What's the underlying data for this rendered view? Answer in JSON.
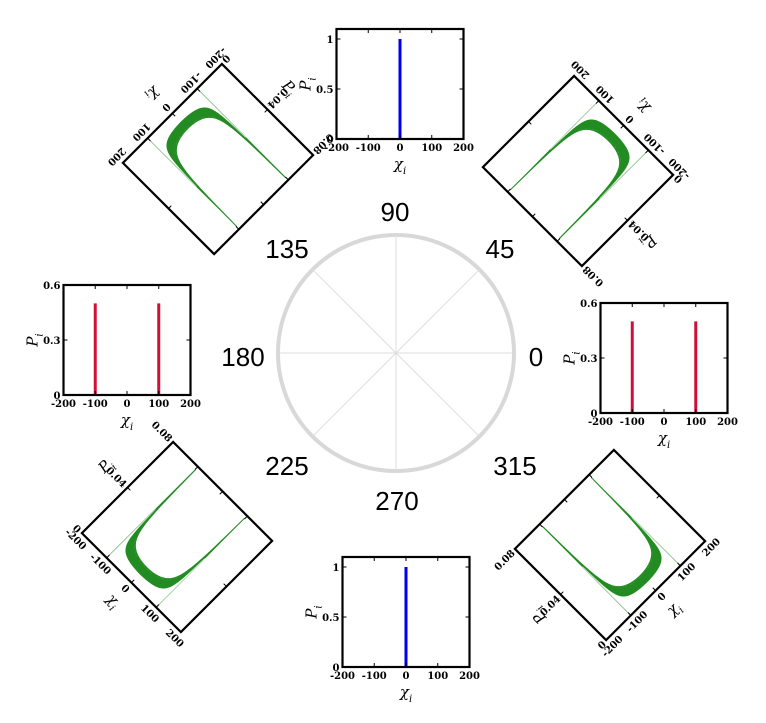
{
  "angle_labels": {
    "a0": "0",
    "a45": "45",
    "a90": "90",
    "a135": "135",
    "a180": "180",
    "a225": "225",
    "a270": "270",
    "a315": "315"
  },
  "colors": {
    "circle": "#d8d8d8",
    "frame": "#000000",
    "series_blue": "#0000ee",
    "series_red": "#d0103a",
    "series_green": "#228b22"
  },
  "chart_data": [
    {
      "id": "p0",
      "type": "bar",
      "angle": 0,
      "xlabel": "χ_i",
      "ylabel": "P_i",
      "xlim": [
        -200,
        200
      ],
      "ylim": [
        0,
        0.6
      ],
      "xticks": [
        "-200",
        "-100",
        "0",
        "100",
        "200"
      ],
      "yticks": [
        "0",
        "0.3",
        "0.6"
      ],
      "x": [
        -100,
        100
      ],
      "values": [
        0.5,
        0.5
      ]
    },
    {
      "id": "p45",
      "type": "area",
      "angle": 45,
      "xlabel": "χ_i",
      "ylabel": "P_i",
      "xlim": [
        -200,
        200
      ],
      "ylim": [
        0,
        0.08
      ],
      "xticks": [
        "-200",
        "-100",
        "0",
        "100",
        "200"
      ],
      "yticks": [
        "0",
        "0.04",
        "0.08"
      ],
      "description_shape": "arcsine-like distribution with peaks near ±100"
    },
    {
      "id": "p90",
      "type": "bar",
      "angle": 90,
      "xlabel": "χ_i",
      "ylabel": "P_i",
      "xlim": [
        -200,
        200
      ],
      "ylim": [
        0,
        1.1
      ],
      "xticks": [
        "-200",
        "-100",
        "0",
        "100",
        "200"
      ],
      "yticks": [
        "0",
        "0.5",
        "1"
      ],
      "x": [
        0
      ],
      "values": [
        1.0
      ]
    },
    {
      "id": "p135",
      "type": "area",
      "angle": 135,
      "xlabel": "χ_i",
      "ylabel": "P_i",
      "xlim": [
        -200,
        200
      ],
      "ylim": [
        0,
        0.08
      ],
      "xticks": [
        "-200",
        "-100",
        "0",
        "100",
        "200"
      ],
      "yticks": [
        "0",
        "0.04",
        "0.08"
      ]
    },
    {
      "id": "p180",
      "type": "bar",
      "angle": 180,
      "xlabel": "χ_i",
      "ylabel": "P_i",
      "xlim": [
        -200,
        200
      ],
      "ylim": [
        0,
        0.6
      ],
      "xticks": [
        "-200",
        "-100",
        "0",
        "100",
        "200"
      ],
      "yticks": [
        "0",
        "0.3",
        "0.6"
      ],
      "x": [
        -100,
        100
      ],
      "values": [
        0.5,
        0.5
      ]
    },
    {
      "id": "p225",
      "type": "area",
      "angle": 225,
      "xlabel": "χ_i",
      "ylabel": "P_i",
      "xlim": [
        -200,
        200
      ],
      "ylim": [
        0,
        0.08
      ],
      "xticks": [
        "-200",
        "-100",
        "0",
        "100",
        "200"
      ],
      "yticks": [
        "0",
        "0.04",
        "0.08"
      ]
    },
    {
      "id": "p270",
      "type": "bar",
      "angle": 270,
      "xlabel": "χ_i",
      "ylabel": "P_i",
      "xlim": [
        -200,
        200
      ],
      "ylim": [
        0,
        1.1
      ],
      "xticks": [
        "-200",
        "-100",
        "0",
        "100",
        "200"
      ],
      "yticks": [
        "0",
        "0.5",
        "1"
      ],
      "x": [
        0
      ],
      "values": [
        1.0
      ]
    },
    {
      "id": "p315",
      "type": "area",
      "angle": 315,
      "xlabel": "χ_i",
      "ylabel": "P_i",
      "xlim": [
        -200,
        200
      ],
      "ylim": [
        0,
        0.08
      ],
      "xticks": [
        "-200",
        "-100",
        "0",
        "100",
        "200"
      ],
      "yticks": [
        "0",
        "0.04",
        "0.08"
      ]
    }
  ]
}
